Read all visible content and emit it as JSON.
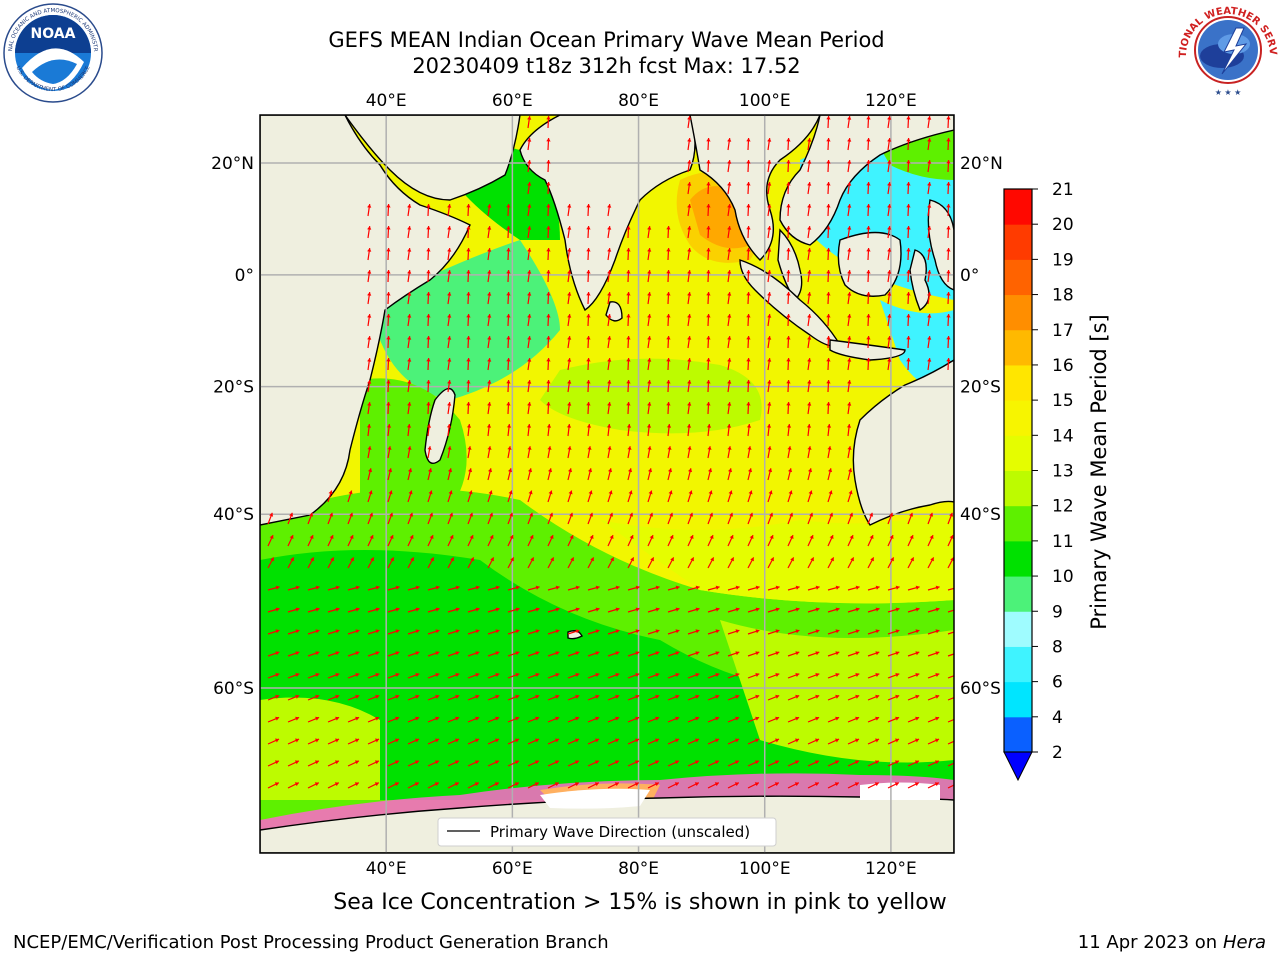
{
  "header": {
    "title_line1": "GEFS MEAN Indian Ocean Primary Wave Mean Period",
    "title_line2": "20230409 t18z 312h fcst   Max: 17.52"
  },
  "logos": {
    "noaa": {
      "text": "NOAA",
      "ring_text": "NATIONAL OCEANIC AND ATMOSPHERIC ADMINISTRATION",
      "ring_text_bottom": "U.S. DEPARTMENT OF COMMERCE"
    },
    "nws": {
      "ring_text": "NATIONAL WEATHER SERVICE"
    }
  },
  "map": {
    "lon_ticks": [
      "40°E",
      "60°E",
      "80°E",
      "100°E",
      "120°E"
    ],
    "lat_ticks": [
      "20°N",
      "0°",
      "20°S",
      "40°S",
      "60°S"
    ],
    "lon_values": [
      40,
      60,
      80,
      100,
      120
    ],
    "lat_values": [
      20,
      0,
      -20,
      -40,
      -60
    ],
    "extent": {
      "lon_min": 20,
      "lon_max": 130,
      "lat_min": -72,
      "lat_max": 28
    },
    "legend_label": "Primary Wave Direction (unscaled)",
    "arrow_color": "#ff0000",
    "land_color": "#efefdf"
  },
  "colorbar": {
    "label": "Primary Wave Mean Period [s]",
    "levels": [
      "2",
      "4",
      "6",
      "8",
      "9",
      "10",
      "11",
      "12",
      "13",
      "14",
      "15",
      "16",
      "17",
      "18",
      "19",
      "20",
      "21"
    ],
    "colors": [
      "#0a60ff",
      "#00e5ff",
      "#3ff3ff",
      "#9ffcff",
      "#4cf279",
      "#00e100",
      "#5ef000",
      "#bdfb00",
      "#e5fd00",
      "#f7f500",
      "#ffe600",
      "#ffb900",
      "#ff8e00",
      "#ff6300",
      "#ff3b00",
      "#ff0800"
    ],
    "under_color": "#0000ff"
  },
  "note": "Sea Ice Concentration > 15% is shown in pink to yellow",
  "footer": {
    "left": "NCEP/EMC/Verification Post Processing Product Generation Branch",
    "right_prefix": "11 Apr 2023 on ",
    "right_host": "Hera"
  }
}
